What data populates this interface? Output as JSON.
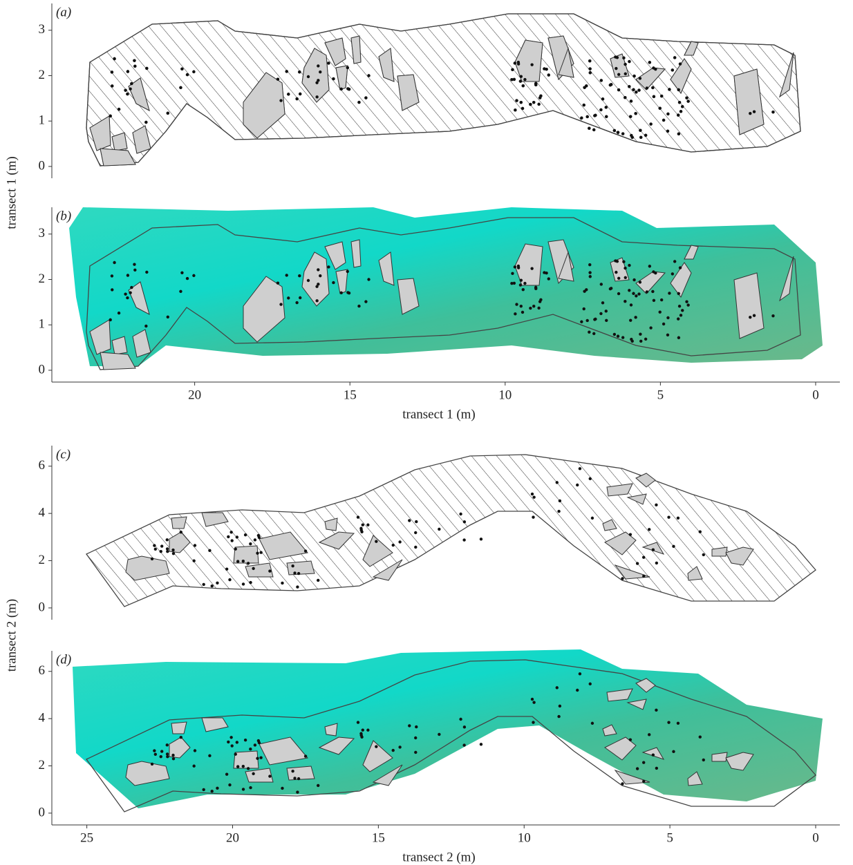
{
  "chart_data": [
    {
      "type": "map",
      "panel_label": "(a)",
      "ylabel": "transect 1 (m)",
      "ylim": [
        -0.26,
        3.59
      ],
      "yticks": [
        0,
        1,
        2,
        3
      ]
    },
    {
      "type": "map",
      "panel_label": "(b)",
      "xlabel": "transect 1 (m)",
      "xlim": [
        24.6,
        -0.78
      ],
      "xticks": [
        20,
        15,
        10,
        5,
        0
      ],
      "ylim": [
        -0.26,
        3.59
      ],
      "yticks": [
        0,
        1,
        2,
        3
      ]
    },
    {
      "type": "map",
      "panel_label": "(c)",
      "ylabel": "transect 2 (m)",
      "ylim": [
        -0.5,
        6.87
      ],
      "yticks": [
        0,
        2,
        4,
        6
      ]
    },
    {
      "type": "map",
      "panel_label": "(d)",
      "xlabel": "transect 2 (m)",
      "xlim": [
        26.2,
        -0.83
      ],
      "xticks": [
        25,
        20,
        15,
        10,
        5,
        0
      ],
      "ylim": [
        -0.5,
        6.87
      ],
      "yticks": [
        0,
        2,
        4,
        6
      ]
    }
  ]
}
